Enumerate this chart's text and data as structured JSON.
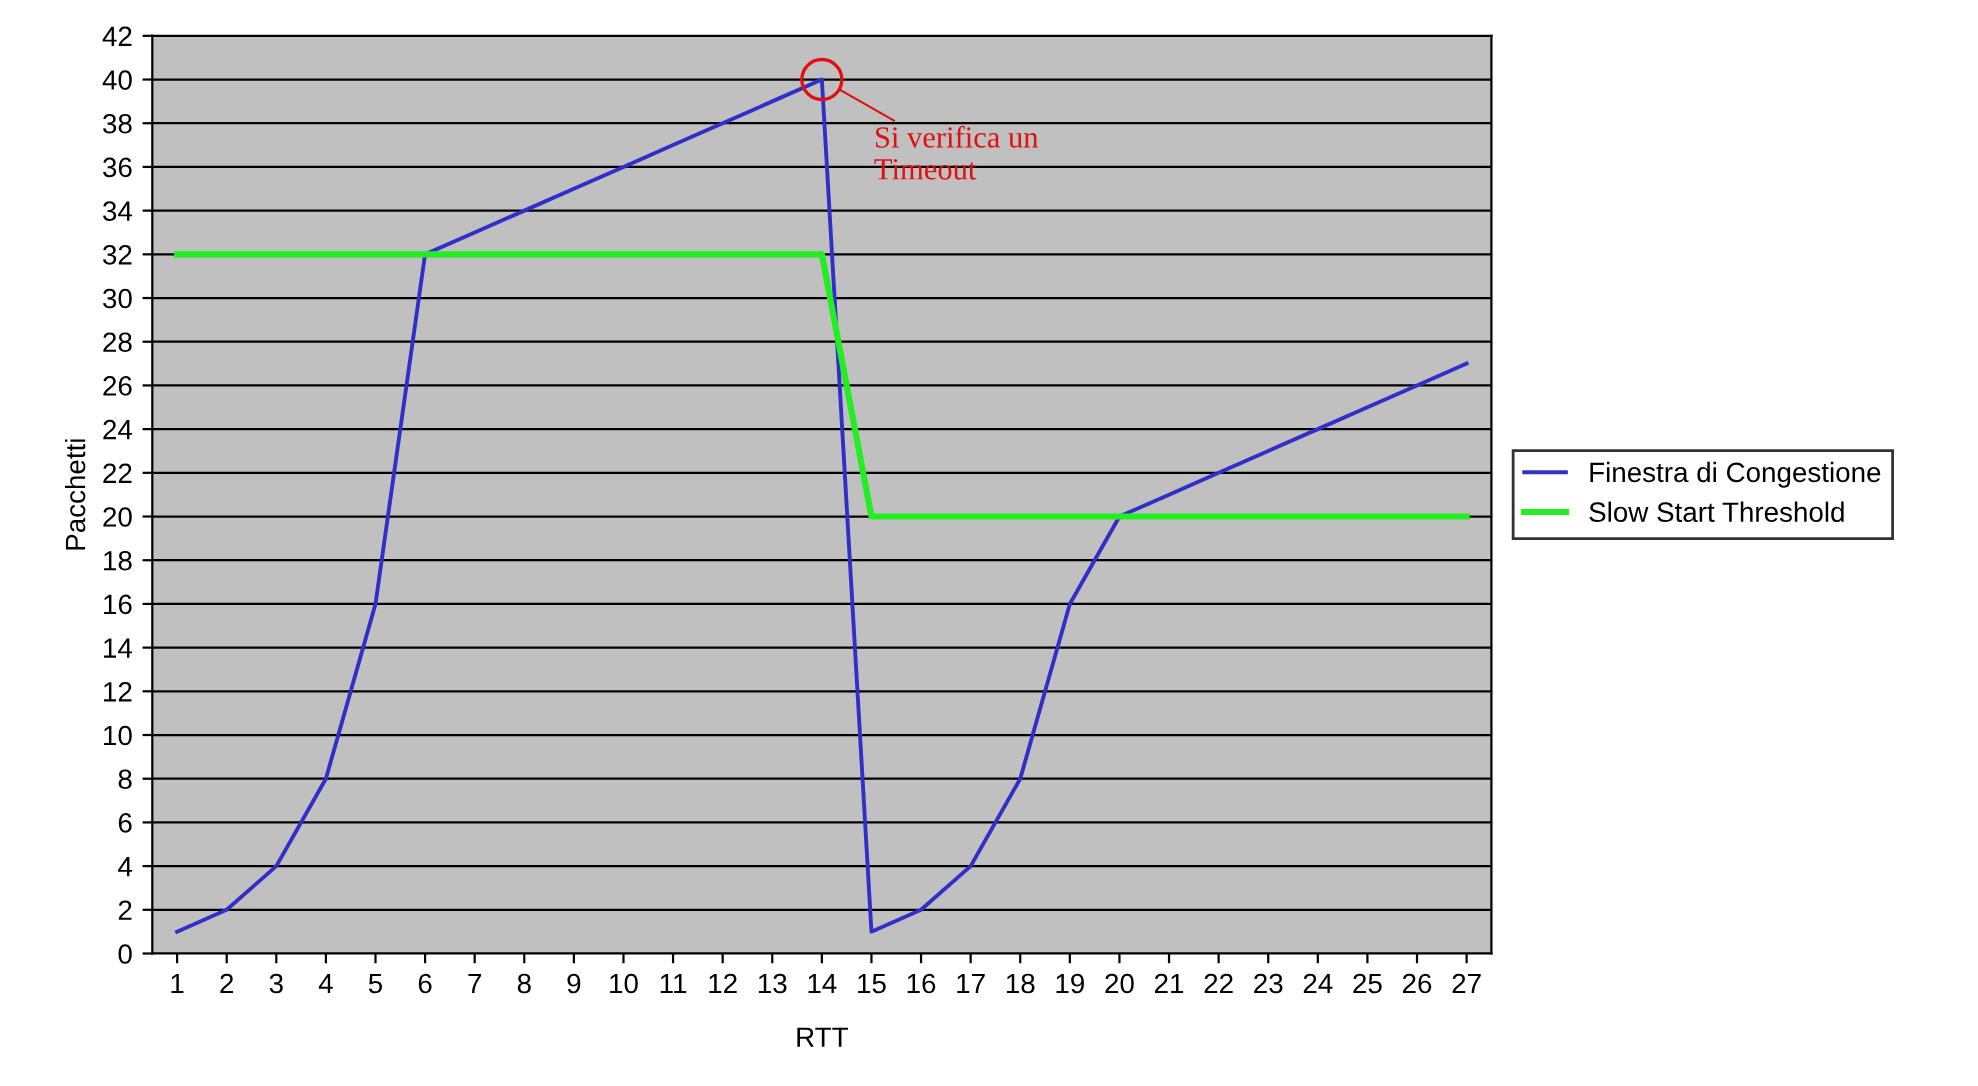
{
  "chart_data": {
    "type": "line",
    "xlabel": "RTT",
    "ylabel": "Pacchetti",
    "categories": [
      "1",
      "2",
      "3",
      "4",
      "5",
      "6",
      "7",
      "8",
      "9",
      "10",
      "11",
      "12",
      "13",
      "14",
      "15",
      "16",
      "17",
      "18",
      "19",
      "20",
      "21",
      "22",
      "23",
      "24",
      "25",
      "26",
      "27"
    ],
    "series": [
      {
        "name": "Finestra di Congestione",
        "color": "#3030c8",
        "values": [
          1,
          2,
          4,
          8,
          16,
          32,
          33,
          34,
          35,
          36,
          37,
          38,
          39,
          40,
          1,
          2,
          4,
          8,
          16,
          20,
          21,
          22,
          23,
          24,
          25,
          26,
          27
        ]
      },
      {
        "name": "Slow Start Threshold",
        "color": "#22ee22",
        "values": [
          32,
          32,
          32,
          32,
          32,
          32,
          32,
          32,
          32,
          32,
          32,
          32,
          32,
          32,
          20,
          20,
          20,
          20,
          20,
          20,
          20,
          20,
          20,
          20,
          20,
          20,
          20
        ]
      }
    ],
    "ylim": [
      0,
      42
    ],
    "yticks": [
      0,
      2,
      4,
      6,
      8,
      10,
      12,
      14,
      16,
      18,
      20,
      22,
      24,
      26,
      28,
      30,
      32,
      34,
      36,
      38,
      40,
      42
    ],
    "grid": "y",
    "legend": "right",
    "marker": "none",
    "line_style": "solid",
    "annotations": [
      {
        "text": "Si verifica un\nTimeout",
        "x": "14",
        "y": 40
      }
    ]
  }
}
